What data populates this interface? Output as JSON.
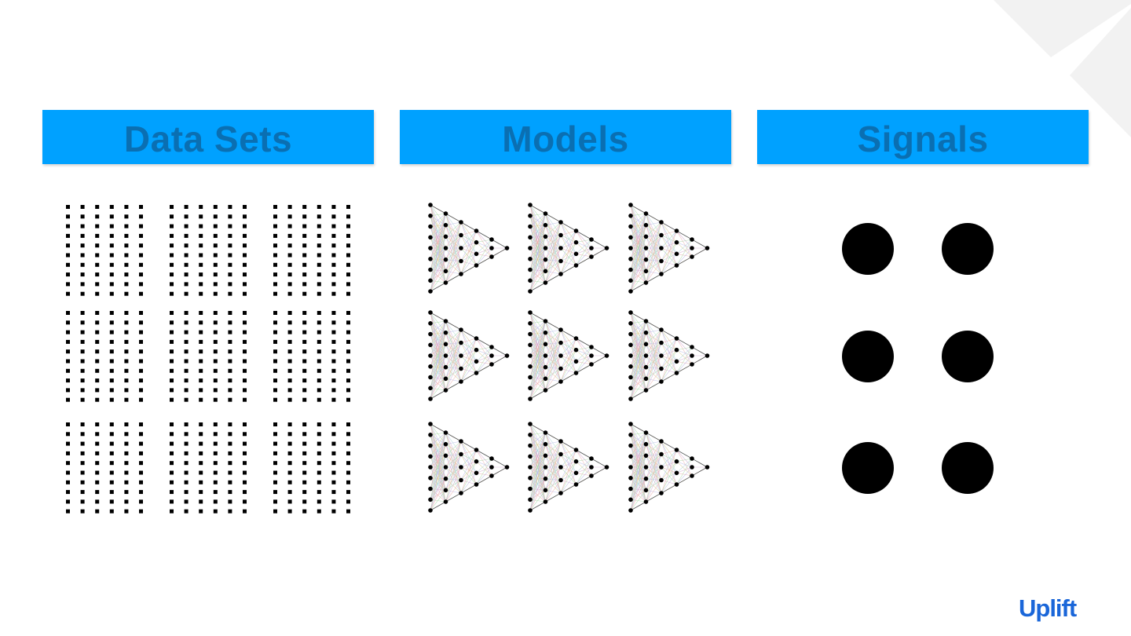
{
  "headers": [
    {
      "label": "Data Sets"
    },
    {
      "label": "Models"
    },
    {
      "label": "Signals"
    }
  ],
  "colors": {
    "header_bg": "#00a1ff",
    "header_text": "#0a6fb2",
    "brand": "#1a66d9",
    "decoration": "#f2f2f2",
    "mark": "#000000"
  },
  "data_sets": {
    "rows": 3,
    "cols": 3
  },
  "models": {
    "rows": 3,
    "cols": 3,
    "layer_sizes": [
      9,
      7,
      5,
      4,
      3,
      1
    ]
  },
  "signals": {
    "rows": 3,
    "cols": 2
  },
  "logo": {
    "text": "Uplift"
  },
  "icons": [
    "dataset-grid-icon",
    "neural-network-icon",
    "signal-dot-icon"
  ]
}
